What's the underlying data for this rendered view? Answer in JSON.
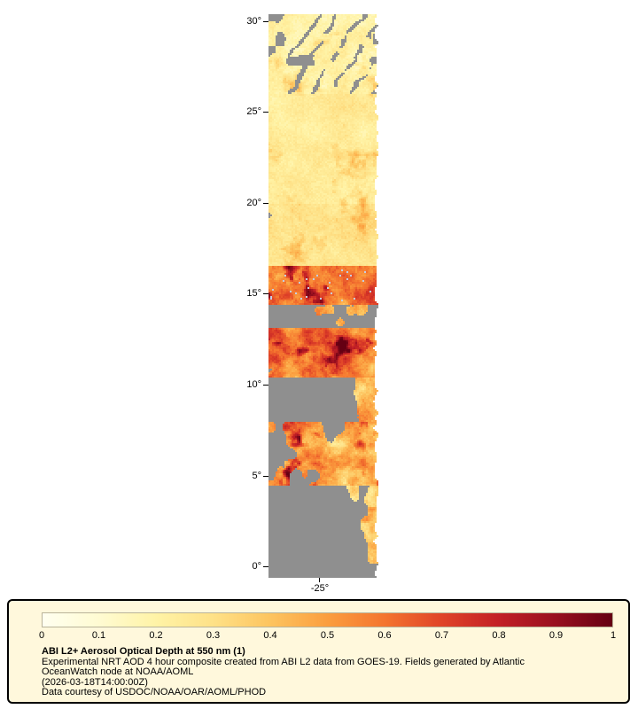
{
  "page": {
    "background": "#ffffff"
  },
  "map": {
    "y_tick_labels": [
      "30°",
      "25°",
      "20°",
      "15°",
      "10°",
      "5°",
      "0°"
    ],
    "x_tick_labels": [
      "-25°"
    ]
  },
  "legend": {
    "panel_bg": "#fff8dc",
    "border_color": "#000000",
    "title": "ABI L2+ Aerosol Optical Depth at 550 nm (1)",
    "lines": [
      "Experimental NRT AOD 4 hour composite created from ABI L2 data from GOES-19. Fields generated by Atlantic",
      "OceanWatch node at NOAA/AOML",
      "(2026-03-18T14:00:00Z)",
      "Data courtesy of USDOC/NOAA/OAR/AOML/PHOD"
    ]
  },
  "chart_data": {
    "type": "heatmap",
    "title": "ABI L2+ Aerosol Optical Depth at 550 nm (1)",
    "variable": "Aerosol Optical Depth (AOD) at 550 nm",
    "source": "GOES-19 ABI L2 NRT 4 hour composite",
    "timestamp": "2026-03-18T14:00:00Z",
    "colorbar": {
      "min": 0,
      "max": 1,
      "tick_labels": [
        "0",
        "0.1",
        "0.2",
        "0.3",
        "0.4",
        "0.5",
        "0.6",
        "0.7",
        "0.8",
        "0.9",
        "1"
      ],
      "stops": [
        "#fffff0",
        "#fffbd2",
        "#fff3a6",
        "#fee187",
        "#fdc45f",
        "#fb9e3f",
        "#f4752f",
        "#e04428",
        "#c32026",
        "#99101f",
        "#650013"
      ]
    },
    "x_axis": {
      "tick_deg": [
        -25
      ]
    },
    "y_axis": {
      "tick_deg": [
        30,
        25,
        20,
        15,
        10,
        5,
        0
      ],
      "range_deg": [
        -0.6,
        30.4
      ]
    },
    "missing_color": "#8f8f8f",
    "cloud_speck_color": "#c6cde2",
    "lat_bands": [
      {
        "lat_min": 26.0,
        "lat_max": 30.5,
        "base": 0.2,
        "amp": 0.1,
        "gray_frac": 0.2,
        "gray_left_bias": 0.1,
        "streaks": true
      },
      {
        "lat_min": 20.0,
        "lat_max": 26.0,
        "base": 0.24,
        "amp": 0.08,
        "gray_frac": 0.05,
        "gray_left_bias": 0.0,
        "streaks": false
      },
      {
        "lat_min": 16.6,
        "lat_max": 20.0,
        "base": 0.28,
        "amp": 0.1,
        "gray_frac": 0.15,
        "gray_left_bias": 0.05,
        "streaks": false
      },
      {
        "lat_min": 14.4,
        "lat_max": 16.6,
        "base": 0.6,
        "amp": 0.3,
        "gray_frac": 0.08,
        "gray_left_bias": 0.1,
        "streaks": false
      },
      {
        "lat_min": 13.1,
        "lat_max": 14.4,
        "base": 0.45,
        "amp": 0.25,
        "gray_frac": 0.6,
        "gray_left_bias": 0.25,
        "streaks": false
      },
      {
        "lat_min": 10.4,
        "lat_max": 13.1,
        "base": 0.55,
        "amp": 0.33,
        "gray_frac": 0.2,
        "gray_left_bias": 0.15,
        "streaks": false
      },
      {
        "lat_min": 8.0,
        "lat_max": 10.4,
        "base": 0.45,
        "amp": 0.3,
        "gray_frac": 0.4,
        "gray_left_bias": 0.45,
        "streaks": false
      },
      {
        "lat_min": 4.4,
        "lat_max": 8.0,
        "base": 0.5,
        "amp": 0.33,
        "gray_frac": 0.22,
        "gray_left_bias": 0.25,
        "streaks": false
      },
      {
        "lat_min": -0.7,
        "lat_max": 4.4,
        "base": 0.38,
        "amp": 0.25,
        "gray_frac": 0.45,
        "gray_left_bias": 0.65,
        "streaks": false
      }
    ]
  }
}
